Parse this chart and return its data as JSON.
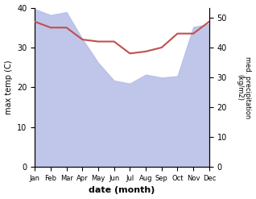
{
  "months": [
    "Jan",
    "Feb",
    "Mar",
    "Apr",
    "May",
    "Jun",
    "Jul",
    "Aug",
    "Sep",
    "Oct",
    "Nov",
    "Dec"
  ],
  "x": [
    0,
    1,
    2,
    3,
    4,
    5,
    6,
    7,
    8,
    9,
    10,
    11
  ],
  "temperature": [
    36.5,
    35.0,
    35.0,
    32.0,
    31.5,
    31.5,
    28.5,
    29.0,
    30.0,
    33.5,
    33.5,
    36.5
  ],
  "precipitation": [
    53.0,
    51.0,
    52.0,
    43.0,
    35.0,
    29.0,
    28.0,
    31.0,
    30.0,
    30.5,
    47.0,
    48.0
  ],
  "temp_color": "#c0504d",
  "precip_fill_color": "#b8c0e8",
  "temp_ylim": [
    0,
    40
  ],
  "precip_ylim": [
    0,
    53.5
  ],
  "ylabel_left": "max temp (C)",
  "ylabel_right": "med. precipitation\n(kg/m2)",
  "xlabel": "date (month)",
  "bg_color": "#ffffff"
}
